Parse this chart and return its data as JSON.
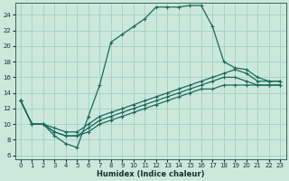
{
  "xlabel": "Humidex (Indice chaleur)",
  "xlim": [
    -0.5,
    23.5
  ],
  "ylim": [
    5.5,
    25.5
  ],
  "xticks": [
    0,
    1,
    2,
    3,
    4,
    5,
    6,
    7,
    8,
    9,
    10,
    11,
    12,
    13,
    14,
    15,
    16,
    17,
    18,
    19,
    20,
    21,
    22,
    23
  ],
  "yticks": [
    6,
    8,
    10,
    12,
    14,
    16,
    18,
    20,
    22,
    24
  ],
  "bg_color": "#cce8dc",
  "grid_color": "#99ccbb",
  "line_color": "#1a6b5a",
  "curve1": [
    13,
    10,
    10,
    8.5,
    7.5,
    7,
    11,
    15,
    20.5,
    21.5,
    22.5,
    23.5,
    25,
    25,
    25,
    25.2,
    25.2,
    22.5,
    18,
    17.2,
    17,
    16,
    15.5,
    15.5
  ],
  "curve2": [
    13,
    10,
    10,
    9.5,
    9,
    9,
    10,
    11,
    11.5,
    12,
    12.5,
    13,
    13.5,
    14,
    14.5,
    15,
    15.5,
    16,
    16.5,
    17,
    16.5,
    15.5,
    15.5,
    15.5
  ],
  "curve3": [
    13,
    10,
    10,
    9,
    8.5,
    8.5,
    9.5,
    10.5,
    11,
    11.5,
    12,
    12.5,
    13,
    13.5,
    14,
    14.5,
    15,
    15.5,
    16,
    16,
    15.5,
    15,
    15,
    15
  ],
  "curve4": [
    13,
    10,
    10,
    9,
    8.5,
    8.5,
    9,
    10,
    10.5,
    11,
    11.5,
    12,
    12.5,
    13,
    13.5,
    14,
    14.5,
    14.5,
    15,
    15,
    15,
    15,
    15,
    15
  ]
}
